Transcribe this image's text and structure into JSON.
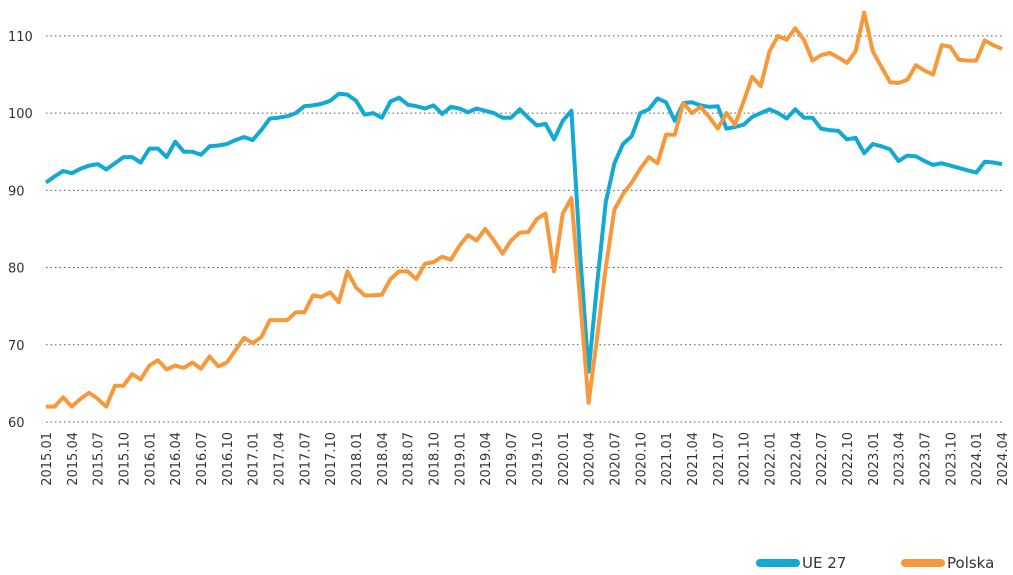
{
  "chart_data": {
    "type": "line",
    "categories": [
      "2015.01",
      null,
      null,
      "2015.04",
      null,
      null,
      "2015.07",
      null,
      null,
      "2015.10",
      null,
      null,
      "2016.01",
      null,
      null,
      "2016.04",
      null,
      null,
      "2016.07",
      null,
      null,
      "2016.10",
      null,
      null,
      "2017.01",
      null,
      null,
      "2017.04",
      null,
      null,
      "2017.07",
      null,
      null,
      "2017.10",
      null,
      null,
      "2018.01",
      null,
      null,
      "2018.04",
      null,
      null,
      "2018.07",
      null,
      null,
      "2018.10",
      null,
      null,
      "2019.01",
      null,
      null,
      "2019.04",
      null,
      null,
      "2019.07",
      null,
      null,
      "2019.10",
      null,
      null,
      "2020.01",
      null,
      null,
      "2020.04",
      null,
      null,
      "2020.07",
      null,
      null,
      "2020.10",
      null,
      null,
      "2021.01",
      null,
      null,
      "2021.04",
      null,
      null,
      "2021.07",
      null,
      null,
      "2021.10",
      null,
      null,
      "2022.01",
      null,
      null,
      "2022.04",
      null,
      null,
      "2022.07",
      null,
      null,
      "2022.10",
      null,
      null,
      "2023.01",
      null,
      null,
      "2023.04",
      null,
      null,
      "2023.07",
      null,
      null,
      "2023.10",
      null,
      null,
      "2024.01",
      null,
      null,
      "2024.04"
    ],
    "series": [
      {
        "name": "UE 27",
        "color": "#12a9d4",
        "values": [
          91.0,
          91.8,
          92.5,
          92.2,
          92.8,
          93.2,
          93.4,
          92.7,
          93.5,
          94.3,
          94.3,
          93.6,
          95.4,
          95.4,
          94.3,
          96.3,
          95.0,
          95.0,
          94.6,
          95.7,
          95.8,
          96.0,
          96.5,
          96.9,
          96.5,
          97.8,
          99.3,
          99.4,
          99.6,
          100.0,
          100.9,
          101.0,
          101.2,
          101.6,
          102.5,
          102.4,
          101.6,
          99.8,
          100.0,
          99.4,
          101.5,
          102.0,
          101.1,
          100.9,
          100.6,
          101.0,
          99.9,
          100.8,
          100.6,
          100.1,
          100.6,
          100.3,
          100.0,
          99.4,
          99.4,
          100.5,
          99.4,
          98.4,
          98.6,
          96.6,
          99.0,
          100.3,
          82.0,
          66.5,
          78.0,
          88.5,
          93.5,
          96.0,
          97.0,
          100.0,
          100.5,
          101.9,
          101.4,
          99.0,
          101.3,
          101.4,
          101.0,
          100.8,
          100.9,
          98.0,
          98.2,
          98.5,
          99.5,
          100.0,
          100.5,
          100.0,
          99.3,
          100.5,
          99.4,
          99.4,
          98.0,
          97.8,
          97.7,
          96.6,
          96.8,
          94.8,
          96.0,
          95.7,
          95.3,
          93.8,
          94.5,
          94.4,
          93.8,
          93.3,
          93.5,
          93.2,
          92.9,
          92.6,
          92.3,
          93.7,
          93.6,
          93.4
        ]
      },
      {
        "name": "Polska",
        "color": "#f7993b",
        "values": [
          62.0,
          62.0,
          63.2,
          62.0,
          63.0,
          63.8,
          63.0,
          62.0,
          64.7,
          64.7,
          66.2,
          65.5,
          67.3,
          68.0,
          66.8,
          67.3,
          67.0,
          67.7,
          66.9,
          68.5,
          67.2,
          67.7,
          69.3,
          70.9,
          70.2,
          71.0,
          73.2,
          73.2,
          73.2,
          74.2,
          74.2,
          76.4,
          76.2,
          76.8,
          75.5,
          79.5,
          77.4,
          76.4,
          76.4,
          76.5,
          78.5,
          79.5,
          79.5,
          78.5,
          80.5,
          80.7,
          81.4,
          81.0,
          82.8,
          84.2,
          83.5,
          85.0,
          83.5,
          81.8,
          83.5,
          84.5,
          84.6,
          86.3,
          87.0,
          79.5,
          87.0,
          89.0,
          76.0,
          62.5,
          71.0,
          80.0,
          87.5,
          89.5,
          91.0,
          92.8,
          94.3,
          93.5,
          97.2,
          97.2,
          101.3,
          100.0,
          100.8,
          99.5,
          98.0,
          100.0,
          98.5,
          101.5,
          104.7,
          103.5,
          108.0,
          110.0,
          109.5,
          111.0,
          109.5,
          106.8,
          107.5,
          107.8,
          107.2,
          106.5,
          108.0,
          113.0,
          108.0,
          106.0,
          104.0,
          103.9,
          104.3,
          106.2,
          105.5,
          105.0,
          108.8,
          108.6,
          106.9,
          106.8,
          106.8,
          109.4,
          108.8,
          108.3
        ]
      }
    ],
    "ylim": [
      60,
      114
    ],
    "yticks": [
      60,
      70,
      80,
      90,
      100,
      110
    ],
    "grid": true,
    "legend": "bottom-right"
  }
}
